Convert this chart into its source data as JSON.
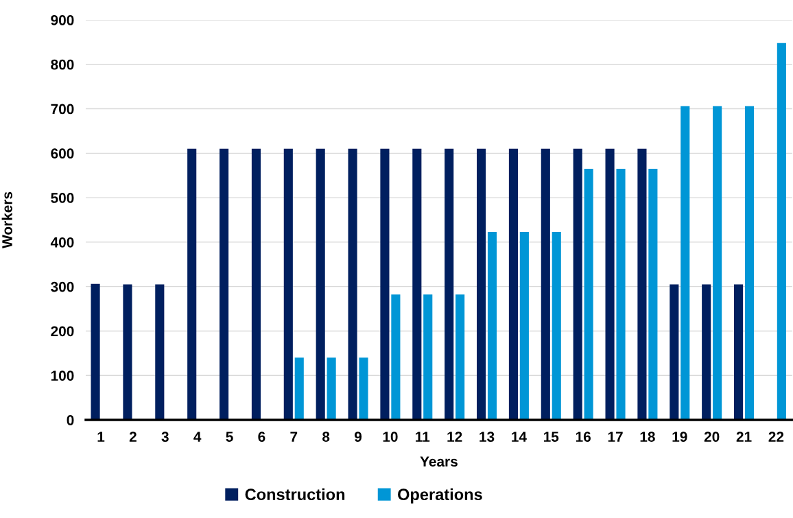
{
  "chart_data": {
    "type": "bar",
    "xlabel": "Years",
    "ylabel": "Workers",
    "categories": [
      "1",
      "2",
      "3",
      "4",
      "5",
      "6",
      "7",
      "8",
      "9",
      "10",
      "11",
      "12",
      "13",
      "14",
      "15",
      "16",
      "17",
      "18",
      "19",
      "20",
      "21",
      "22"
    ],
    "series": [
      {
        "name": "Construction",
        "color": "#001f5f",
        "values": [
          306,
          305,
          305,
          610,
          610,
          610,
          610,
          610,
          610,
          610,
          610,
          610,
          610,
          610,
          610,
          610,
          610,
          610,
          305,
          305,
          305,
          0
        ]
      },
      {
        "name": "Operations",
        "color": "#0096d6",
        "values": [
          0,
          0,
          0,
          0,
          0,
          0,
          140,
          140,
          140,
          282,
          282,
          282,
          423,
          423,
          423,
          565,
          565,
          565,
          706,
          706,
          706,
          848
        ]
      }
    ],
    "ylim": [
      0,
      900
    ],
    "yticks": [
      0,
      100,
      200,
      300,
      400,
      500,
      600,
      700,
      800,
      900
    ],
    "grid": "y",
    "legend": "bottom"
  }
}
